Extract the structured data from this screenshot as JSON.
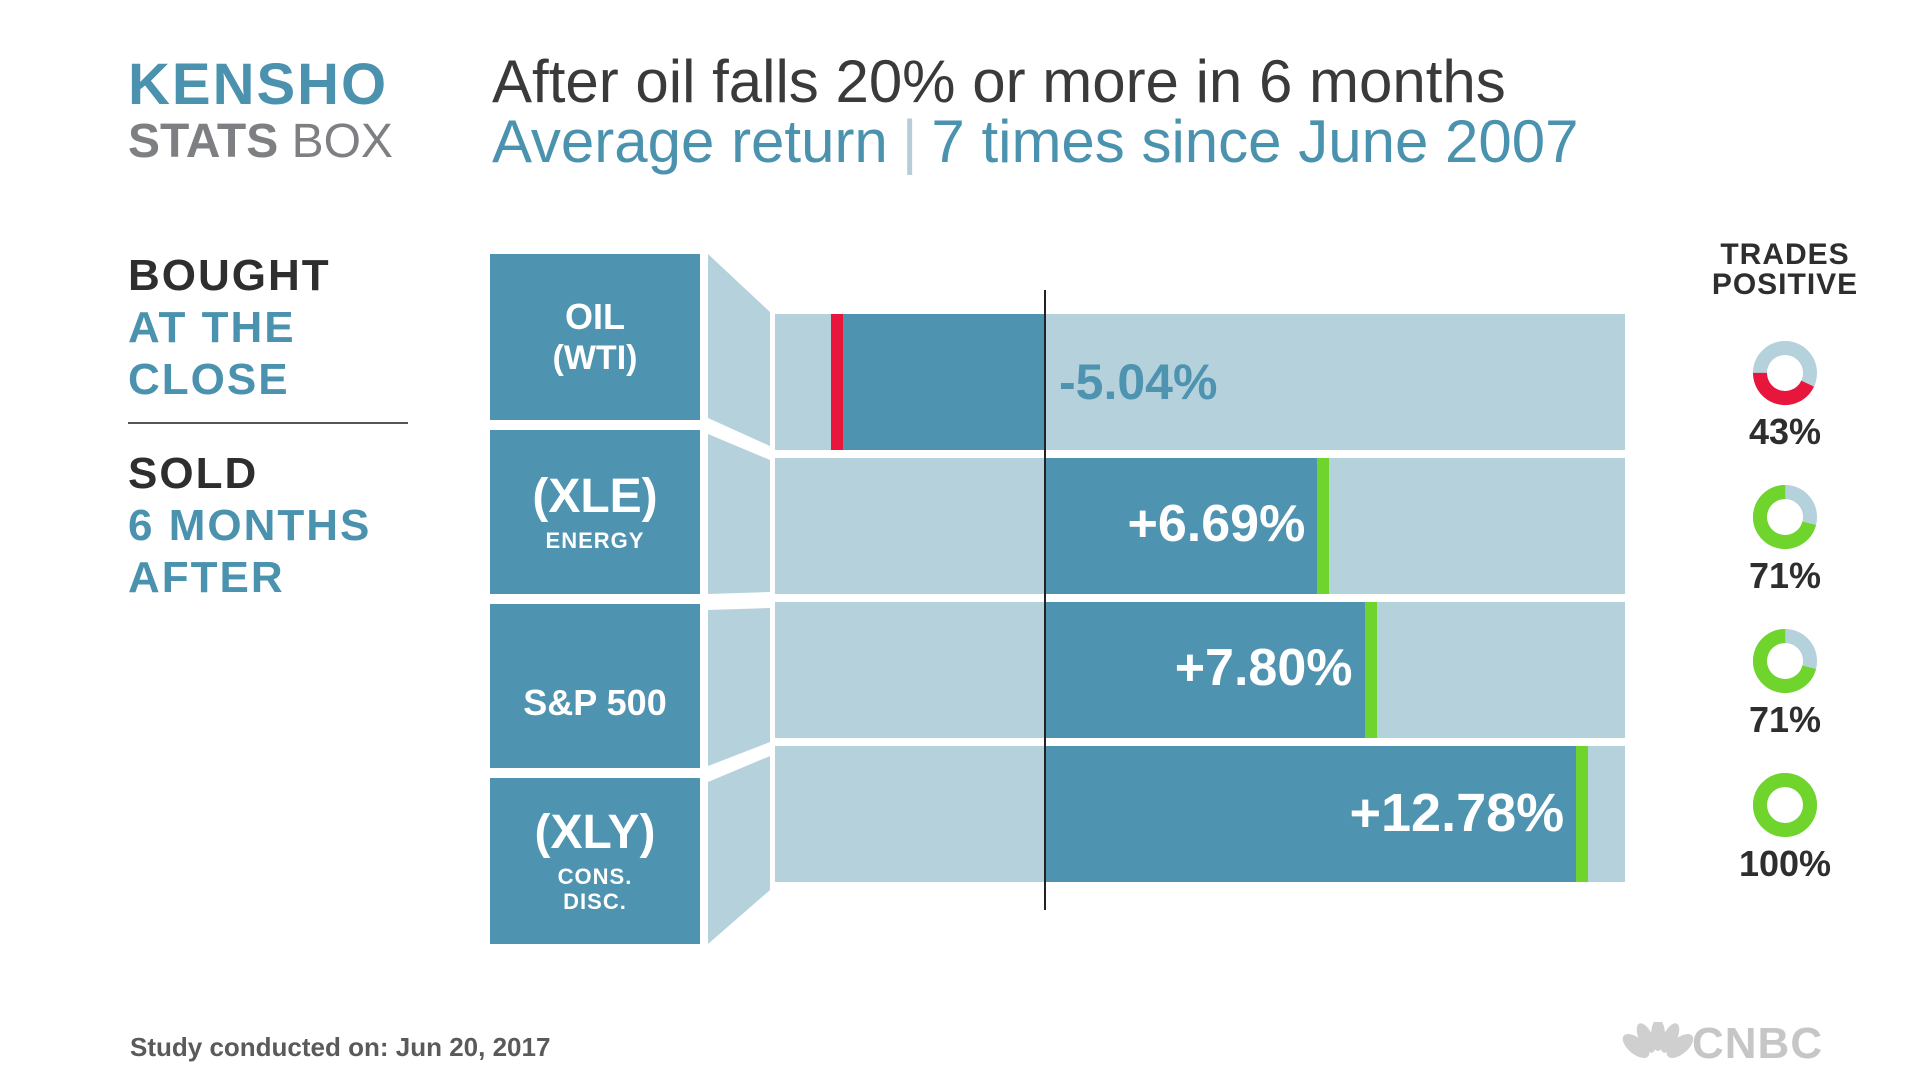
{
  "logo": {
    "line1": "KENSHO",
    "line2_bold": "STATS",
    "line2_light": "BOX"
  },
  "title": "After oil falls 20% or more in 6 months",
  "subtitle": {
    "left": "Average return",
    "separator": "|",
    "right": "7 times since June 2007"
  },
  "legend": {
    "bought": "BOUGHT",
    "bought_when_1": "AT THE",
    "bought_when_2": "CLOSE",
    "sold": "SOLD",
    "sold_when_1": "6 MONTHS",
    "sold_when_2": "AFTER"
  },
  "trades_positive_header": [
    "TRADES",
    "POSITIVE"
  ],
  "colors": {
    "accent_blue": "#4e93b0",
    "light_blue": "#b5d1dc",
    "negative": "#e8163c",
    "positive": "#6fd52d",
    "donut_track": "#b5d1dc"
  },
  "chart_data": {
    "type": "bar",
    "orientation": "horizontal",
    "value_unit": "%",
    "categories": [
      {
        "main": "OIL",
        "sub": "(WTI)"
      },
      {
        "main": "(XLE)",
        "sub": "ENERGY"
      },
      {
        "main": "S&P 500",
        "sub": ""
      },
      {
        "main": "(XLY)",
        "sub": "CONS. DISC."
      }
    ],
    "values": [
      -5.04,
      6.69,
      7.8,
      12.78
    ],
    "value_labels": [
      "-5.04%",
      "+6.69%",
      "+7.80%",
      "+12.78%"
    ],
    "trades_positive_pct": [
      43,
      71,
      71,
      100
    ],
    "trades_positive_labels": [
      "43%",
      "71%",
      "71%",
      "100%"
    ],
    "xlim": [
      -6.5,
      14.5
    ],
    "zero_line": true
  },
  "footer": "Study conducted on: Jun 20, 2017",
  "brand": "CNBC"
}
